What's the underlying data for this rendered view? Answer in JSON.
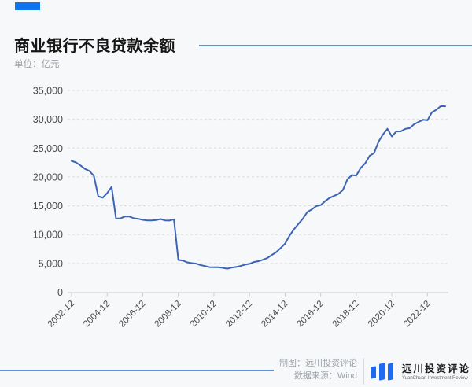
{
  "header": {
    "title": "商业银行不良贷款余额",
    "unit": "单位：亿元"
  },
  "footer": {
    "credit": "制图：远川投资评论",
    "source": "数据来源：Wind"
  },
  "logo": {
    "name_cn": "远川投资评论",
    "name_en": "YuanChuan Investment Review"
  },
  "colors": {
    "accent_blue": "#0E73EE",
    "rule_blue": "#5B94DB",
    "line_blue": "#3D63B5",
    "grid": "#DCDCDC",
    "axis": "#C9CCD0",
    "tick_label": "#4A4A4A"
  },
  "chart_data": {
    "type": "line",
    "title": "商业银行不良贷款余额",
    "ylabel": "亿元",
    "ylim": [
      0,
      35000
    ],
    "ytick_step": 5000,
    "ytick_labels": [
      "0",
      "5,000",
      "10,000",
      "15,000",
      "20,000",
      "25,000",
      "30,000",
      "35,000"
    ],
    "x_tick_labels": [
      "2002-12",
      "2004-12",
      "2006-12",
      "2008-12",
      "2010-12",
      "2012-12",
      "2014-12",
      "2016-12",
      "2018-12",
      "2020-12",
      "2022-12"
    ],
    "grid": true,
    "legend": "none",
    "x": [
      "2002-12",
      "2003-03",
      "2003-06",
      "2003-09",
      "2003-12",
      "2004-03",
      "2004-06",
      "2004-09",
      "2004-12",
      "2005-03",
      "2005-06",
      "2005-09",
      "2005-12",
      "2006-03",
      "2006-06",
      "2006-09",
      "2006-12",
      "2007-03",
      "2007-06",
      "2007-09",
      "2007-12",
      "2008-03",
      "2008-06",
      "2008-09",
      "2008-12",
      "2009-03",
      "2009-06",
      "2009-09",
      "2009-12",
      "2010-03",
      "2010-06",
      "2010-09",
      "2010-12",
      "2011-03",
      "2011-06",
      "2011-09",
      "2011-12",
      "2012-03",
      "2012-06",
      "2012-09",
      "2012-12",
      "2013-03",
      "2013-06",
      "2013-09",
      "2013-12",
      "2014-03",
      "2014-06",
      "2014-09",
      "2014-12",
      "2015-03",
      "2015-06",
      "2015-09",
      "2015-12",
      "2016-03",
      "2016-06",
      "2016-09",
      "2016-12",
      "2017-03",
      "2017-06",
      "2017-09",
      "2017-12",
      "2018-03",
      "2018-06",
      "2018-09",
      "2018-12",
      "2019-03",
      "2019-06",
      "2019-09",
      "2019-12",
      "2020-03",
      "2020-06",
      "2020-09",
      "2020-12",
      "2021-03",
      "2021-06",
      "2021-09",
      "2021-12",
      "2022-03",
      "2022-06",
      "2022-09",
      "2022-12",
      "2023-03",
      "2023-06",
      "2023-09",
      "2023-12"
    ],
    "series": [
      {
        "name": "商业银行不良贷款余额",
        "values": [
          22793,
          22500,
          22000,
          21400,
          21045,
          20200,
          16631,
          16400,
          17176,
          18274,
          12759,
          12808,
          13134,
          13125,
          12827,
          12736,
          12549,
          12456,
          12456,
          12518,
          12684,
          12457,
          12425,
          12654,
          5603,
          5495,
          5181,
          5045,
          4973,
          4701,
          4549,
          4354,
          4336,
          4333,
          4229,
          4078,
          4279,
          4382,
          4564,
          4788,
          4929,
          5243,
          5395,
          5636,
          5921,
          6461,
          6944,
          7669,
          8426,
          9825,
          10919,
          11863,
          12744,
          13921,
          14373,
          14939,
          15123,
          15795,
          16358,
          16704,
          17057,
          17742,
          19571,
          20322,
          20254,
          21571,
          22352,
          23672,
          24135,
          26121,
          27364,
          28350,
          27015,
          27892,
          27911,
          28330,
          28470,
          29128,
          29540,
          29912,
          29829,
          31189,
          31662,
          32286,
          32256
        ]
      }
    ]
  }
}
